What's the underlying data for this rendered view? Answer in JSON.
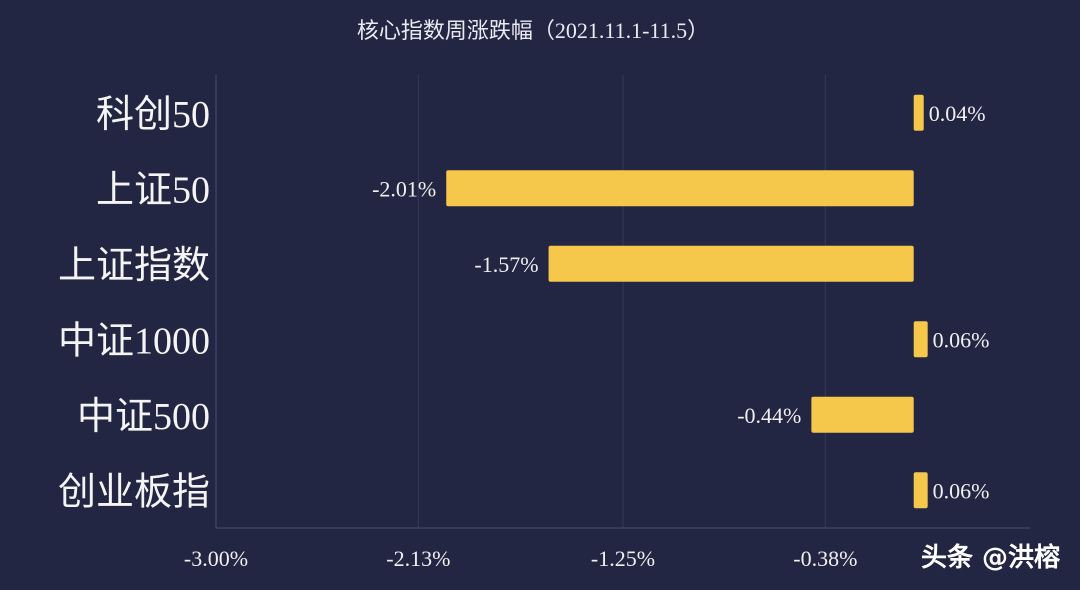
{
  "chart_data": {
    "type": "bar",
    "orientation": "horizontal",
    "title": "核心指数周涨跌幅（2021.11.1-11.5）",
    "categories": [
      "科创50",
      "上证50",
      "上证指数",
      "中证1000",
      "中证500",
      "创业板指"
    ],
    "values": [
      0.04,
      -2.01,
      -1.57,
      0.06,
      -0.44,
      0.06
    ],
    "value_labels": [
      "0.04%",
      "-2.01%",
      "-1.57%",
      "0.06%",
      "-0.44%",
      "0.06%"
    ],
    "x_ticks": [
      -3.0,
      -2.13,
      -1.25,
      -0.38
    ],
    "x_tick_labels": [
      "-3.00%",
      "-2.13%",
      "-1.25%",
      "-0.38%"
    ],
    "xlim": [
      -3.0,
      0.5
    ],
    "grid": "vertical",
    "legend": "none",
    "bar_color": "#f5c84c",
    "background_color": "#232642"
  },
  "watermark": "头条 @洪榕"
}
